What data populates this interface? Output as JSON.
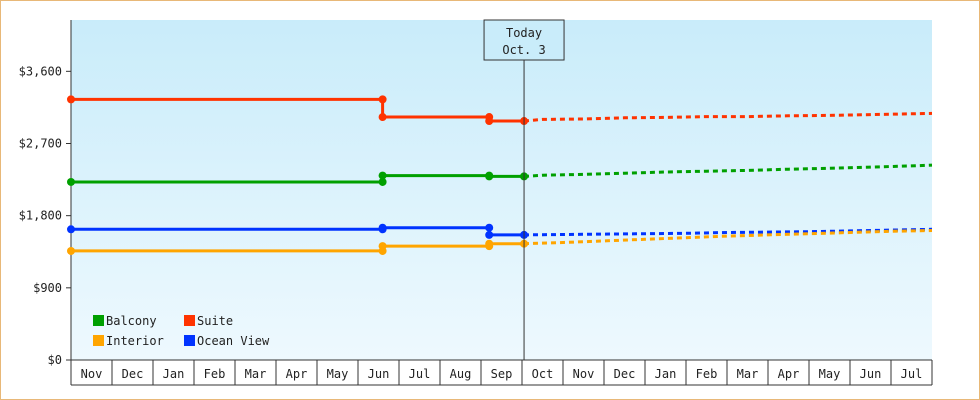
{
  "chart_data": {
    "type": "line",
    "y_axis": {
      "ticks": [
        {
          "value": 0,
          "label": "$0"
        },
        {
          "value": 900,
          "label": "$900"
        },
        {
          "value": 1800,
          "label": "$1,800"
        },
        {
          "value": 2700,
          "label": "$2,700"
        },
        {
          "value": 3600,
          "label": "$3,600"
        }
      ],
      "ylim": [
        0,
        4240
      ]
    },
    "x_axis": {
      "months": [
        "Nov",
        "Dec",
        "Jan",
        "Feb",
        "Mar",
        "Apr",
        "May",
        "Jun",
        "Jul",
        "Aug",
        "Sep",
        "Oct",
        "Nov",
        "Dec",
        "Jan",
        "Feb",
        "Mar",
        "Apr",
        "May",
        "Jun",
        "Jul"
      ],
      "xlim": [
        0,
        21
      ]
    },
    "today_marker": {
      "line1": "Today",
      "line2": "Oct. 3",
      "x": 11.05
    },
    "legend": {
      "placement": "bottom-left",
      "order": [
        "Balcony",
        "Suite",
        "Interior",
        "Ocean View"
      ]
    },
    "series": [
      {
        "name": "Suite",
        "color": "#ff3300",
        "historical": [
          [
            0,
            3250
          ],
          [
            7.6,
            3250
          ],
          [
            7.6,
            3030
          ],
          [
            10.2,
            3030
          ],
          [
            10.2,
            2980
          ],
          [
            11.05,
            2980
          ]
        ],
        "markers": [
          [
            0,
            3250
          ],
          [
            7.6,
            3250
          ],
          [
            7.6,
            3030
          ],
          [
            10.2,
            3030
          ],
          [
            10.2,
            2980
          ],
          [
            11.05,
            2980
          ]
        ],
        "forecast": [
          [
            11.05,
            2980
          ],
          [
            11.5,
            3000
          ],
          [
            12.5,
            3005
          ],
          [
            13.5,
            3020
          ],
          [
            14.5,
            3025
          ],
          [
            15.5,
            3035
          ],
          [
            16.5,
            3035
          ],
          [
            17.5,
            3045
          ],
          [
            18.5,
            3050
          ],
          [
            19.5,
            3060
          ],
          [
            20.5,
            3070
          ],
          [
            21,
            3075
          ]
        ]
      },
      {
        "name": "Balcony",
        "color": "#00a000",
        "historical": [
          [
            0,
            2220
          ],
          [
            7.6,
            2220
          ],
          [
            7.6,
            2300
          ],
          [
            10.2,
            2300
          ],
          [
            10.2,
            2290
          ],
          [
            11.05,
            2290
          ]
        ],
        "markers": [
          [
            0,
            2220
          ],
          [
            7.6,
            2220
          ],
          [
            7.6,
            2300
          ],
          [
            10.2,
            2300
          ],
          [
            10.2,
            2290
          ],
          [
            11.05,
            2290
          ]
        ],
        "forecast": [
          [
            11.05,
            2290
          ],
          [
            11.5,
            2305
          ],
          [
            12.5,
            2315
          ],
          [
            13.5,
            2330
          ],
          [
            14.5,
            2345
          ],
          [
            15.5,
            2355
          ],
          [
            16.5,
            2365
          ],
          [
            17.5,
            2380
          ],
          [
            18.5,
            2390
          ],
          [
            19.5,
            2405
          ],
          [
            20.5,
            2420
          ],
          [
            21,
            2430
          ]
        ]
      },
      {
        "name": "Ocean View",
        "color": "#0033ff",
        "historical": [
          [
            0,
            1630
          ],
          [
            7.6,
            1630
          ],
          [
            7.6,
            1650
          ],
          [
            10.2,
            1650
          ],
          [
            10.2,
            1560
          ],
          [
            11.05,
            1560
          ]
        ],
        "markers": [
          [
            0,
            1630
          ],
          [
            7.6,
            1630
          ],
          [
            7.6,
            1650
          ],
          [
            10.2,
            1650
          ],
          [
            10.2,
            1560
          ],
          [
            11.05,
            1560
          ]
        ],
        "forecast": [
          [
            11.05,
            1560
          ],
          [
            12,
            1565
          ],
          [
            13,
            1570
          ],
          [
            14,
            1575
          ],
          [
            15,
            1580
          ],
          [
            16,
            1590
          ],
          [
            17,
            1595
          ],
          [
            18,
            1600
          ],
          [
            19,
            1610
          ],
          [
            20,
            1620
          ],
          [
            21,
            1630
          ]
        ]
      },
      {
        "name": "Interior",
        "color": "#ffa500",
        "historical": [
          [
            0,
            1360
          ],
          [
            7.6,
            1360
          ],
          [
            7.6,
            1420
          ],
          [
            10.2,
            1420
          ],
          [
            10.2,
            1450
          ],
          [
            11.05,
            1450
          ]
        ],
        "markers": [
          [
            0,
            1360
          ],
          [
            7.6,
            1360
          ],
          [
            7.6,
            1420
          ],
          [
            10.2,
            1420
          ],
          [
            10.2,
            1450
          ],
          [
            11.05,
            1450
          ]
        ],
        "forecast": [
          [
            11.05,
            1450
          ],
          [
            12,
            1465
          ],
          [
            13,
            1485
          ],
          [
            14,
            1505
          ],
          [
            15,
            1525
          ],
          [
            16,
            1545
          ],
          [
            17,
            1560
          ],
          [
            18,
            1575
          ],
          [
            19,
            1590
          ],
          [
            20,
            1605
          ],
          [
            21,
            1615
          ]
        ]
      }
    ]
  }
}
